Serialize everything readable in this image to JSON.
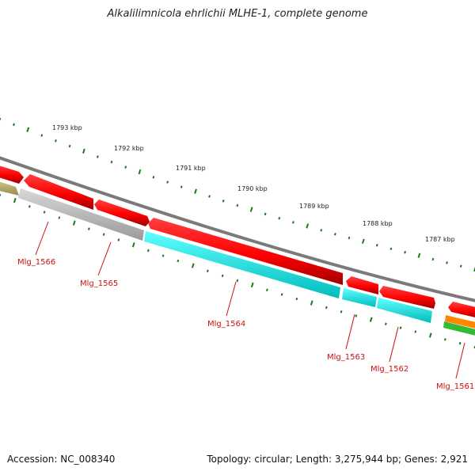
{
  "title": "Alkalilimnicola ehrlichii MLHE-1, complete genome",
  "footer": {
    "accession": "Accession: NC_008340",
    "summary": "Topology: circular; Length: 3,275,944 bp; Genes: 2,921"
  },
  "scale_labels": [
    "1793 kbp",
    "1792 kbp",
    "1791 kbp",
    "1790 kbp",
    "1789 kbp",
    "1788 kbp",
    "1787 kbp"
  ],
  "genes": [
    {
      "name": "Mlg_1566"
    },
    {
      "name": "Mlg_1565"
    },
    {
      "name": "Mlg_1564"
    },
    {
      "name": "Mlg_1563"
    },
    {
      "name": "Mlg_1562"
    },
    {
      "name": "Mlg_1561"
    }
  ],
  "colors": {
    "cds": "#ff0000",
    "gene_gray": "#c0c0c0",
    "gene_cyan": "#00ffff",
    "gene_olive": "#b8b070",
    "backbone": "#7a7a7a",
    "ticks": "#1a7a1a",
    "label": "#d01010",
    "orange": "#ff8800",
    "green": "#33bb33"
  }
}
